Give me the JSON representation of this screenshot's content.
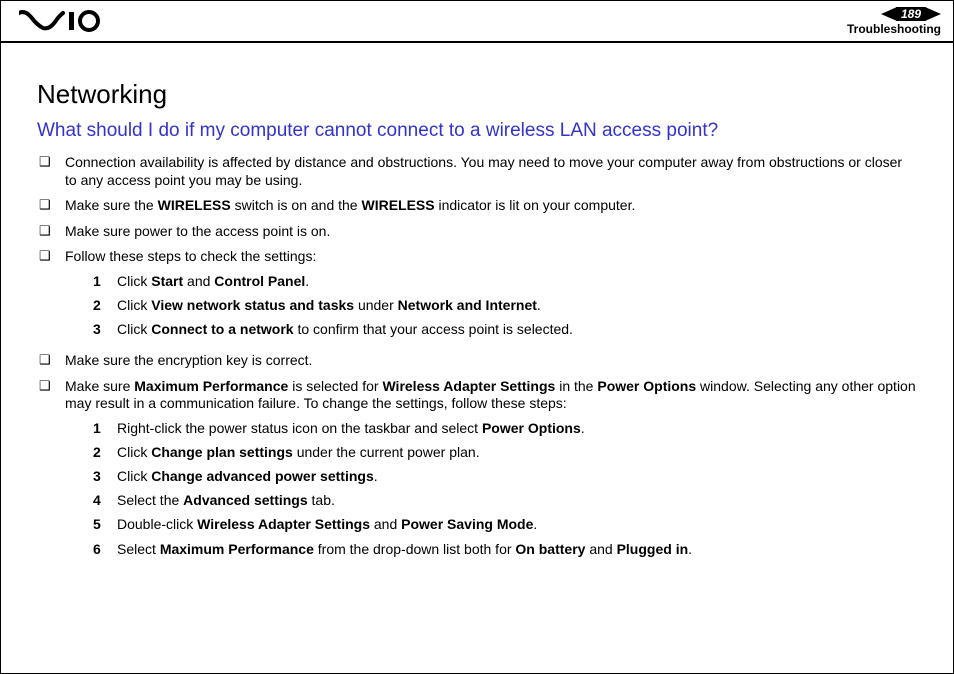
{
  "header": {
    "page_number": "189",
    "section": "Troubleshooting"
  },
  "colors": {
    "heading2": "#3333cc",
    "text": "#000000",
    "border": "#000000",
    "background": "#ffffff"
  },
  "content": {
    "h1": "Networking",
    "h2": "What should I do if my computer cannot connect to a wireless LAN access point?",
    "bullets": [
      {
        "html": "Connection availability is affected by distance and obstructions. You may need to move your computer away from obstructions or closer to any access point you may be using."
      },
      {
        "html": "Make sure the <b>WIRELESS</b> switch is on and the <b>WIRELESS</b> indicator is lit on your computer."
      },
      {
        "html": "Make sure power to the access point is on."
      },
      {
        "html": "Follow these steps to check the settings:",
        "steps": [
          "Click <b>Start</b> and <b>Control Panel</b>.",
          "Click <b>View network status and tasks</b> under <b>Network and Internet</b>.",
          "Click <b>Connect to a network</b> to confirm that your access point is selected."
        ]
      },
      {
        "html": "Make sure the encryption key is correct."
      },
      {
        "html": "Make sure <b>Maximum Performance</b> is selected for <b>Wireless Adapter Settings</b> in the <b>Power Options</b> window. Selecting any other option may result in a communication failure. To change the settings, follow these steps:",
        "steps": [
          "Right-click the power status icon on the taskbar and select <b>Power Options</b>.",
          "Click <b>Change plan settings</b> under the current power plan.",
          "Click <b>Change advanced power settings</b>.",
          "Select the <b>Advanced settings</b> tab.",
          "Double-click <b>Wireless Adapter Settings</b> and <b>Power Saving Mode</b>.",
          "Select <b>Maximum Performance</b> from the drop-down list both for <b>On battery</b> and <b>Plugged in</b>."
        ]
      }
    ]
  }
}
